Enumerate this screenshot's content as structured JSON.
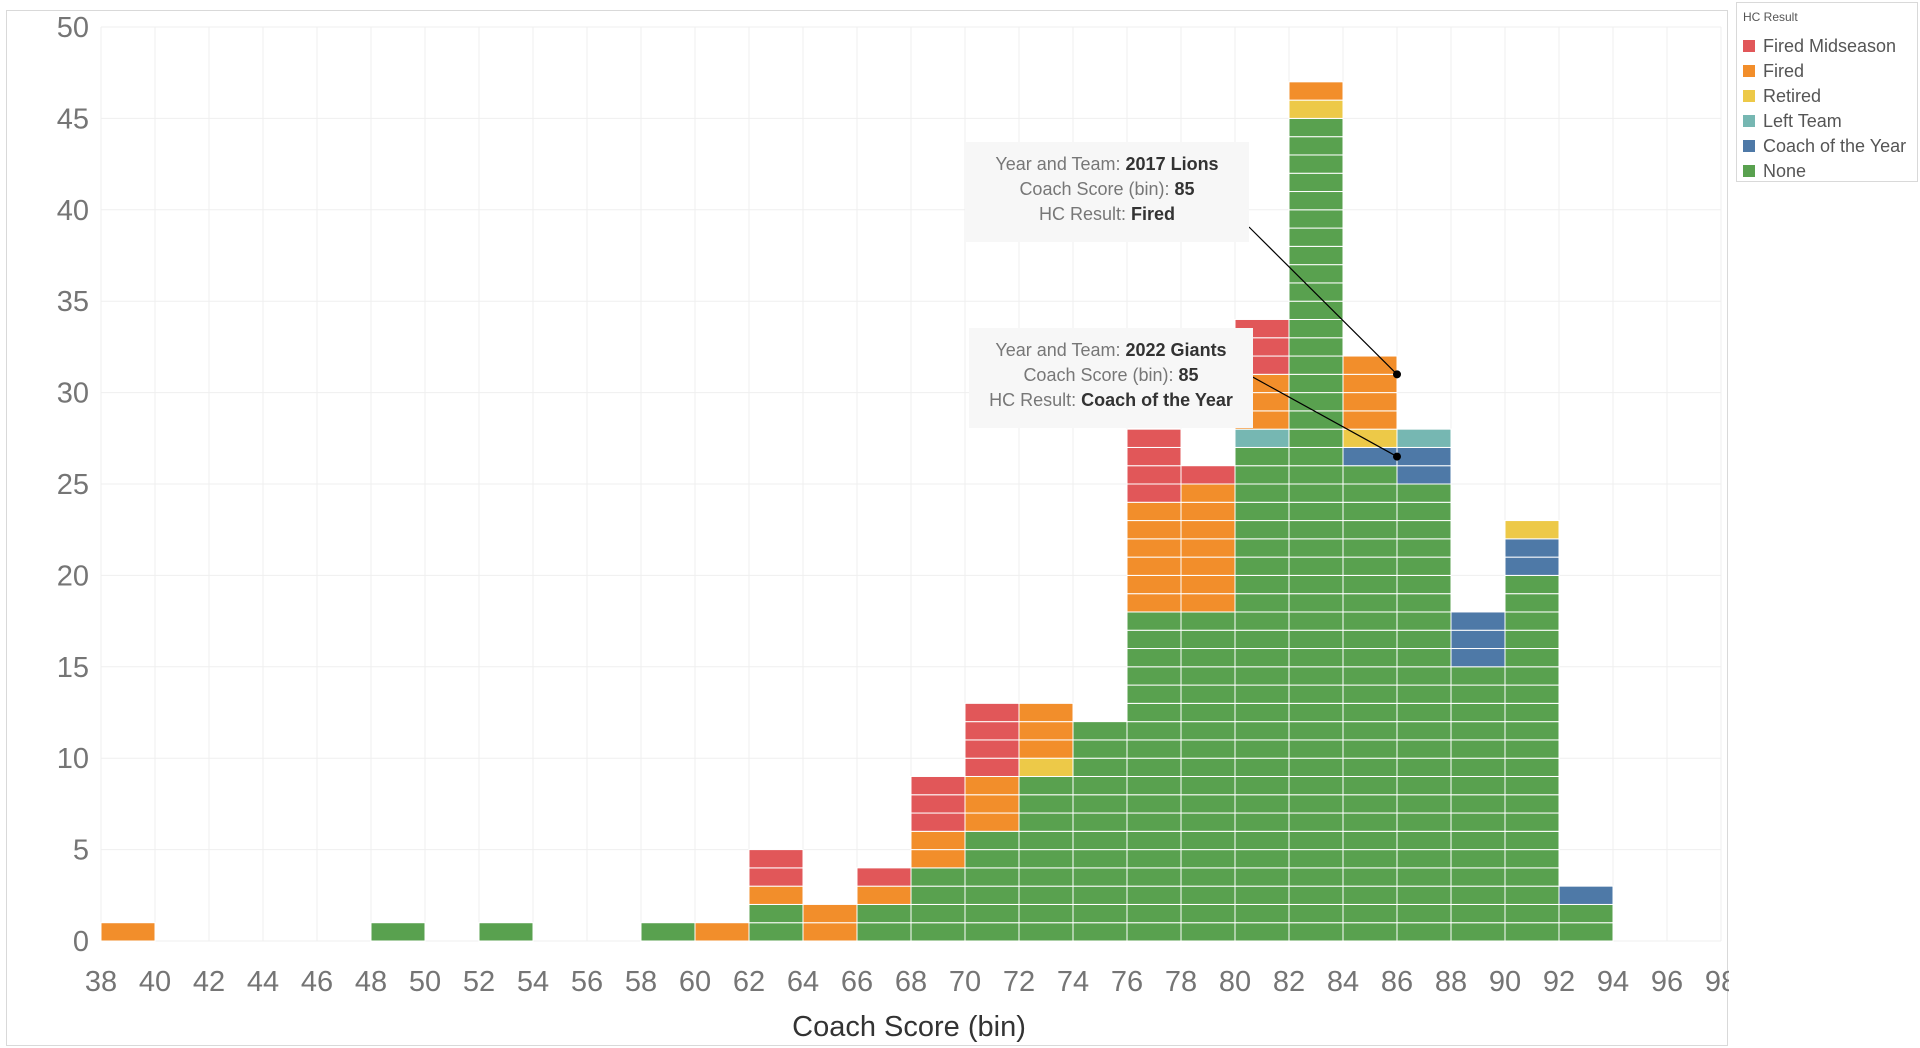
{
  "chart_data": {
    "type": "bar",
    "stacked": true,
    "xlabel": "Coach Score (bin)",
    "ylabel": "",
    "ylim": [
      0,
      50
    ],
    "xlim": [
      38,
      98
    ],
    "bin_width": 2,
    "y_ticks": [
      0,
      5,
      10,
      15,
      20,
      25,
      30,
      35,
      40,
      45,
      50
    ],
    "x_ticks": [
      38,
      40,
      42,
      44,
      46,
      48,
      50,
      52,
      54,
      56,
      58,
      60,
      62,
      64,
      66,
      68,
      70,
      72,
      74,
      76,
      78,
      80,
      82,
      84,
      86,
      88,
      90,
      92,
      94,
      96,
      98
    ],
    "grid": true,
    "legend_position": "top-right",
    "legend_title": "HC Result",
    "bins": [
      39,
      49,
      53,
      59,
      61,
      63,
      65,
      67,
      69,
      71,
      73,
      75,
      77,
      79,
      81,
      83,
      85,
      87,
      89,
      91,
      93
    ],
    "series": [
      {
        "name": "None",
        "color": "#59A14F",
        "values": [
          0,
          1,
          1,
          1,
          0,
          2,
          0,
          2,
          4,
          6,
          9,
          12,
          18,
          18,
          27,
          45,
          26,
          25,
          15,
          20,
          2
        ]
      },
      {
        "name": "Coach of the Year",
        "color": "#4E79A7",
        "values": [
          0,
          0,
          0,
          0,
          0,
          0,
          0,
          0,
          0,
          0,
          0,
          0,
          0,
          0,
          0,
          0,
          1,
          2,
          3,
          2,
          1
        ]
      },
      {
        "name": "Left Team",
        "color": "#76B7B2",
        "values": [
          0,
          0,
          0,
          0,
          0,
          0,
          0,
          0,
          0,
          0,
          0,
          0,
          0,
          0,
          1,
          0,
          0,
          1,
          0,
          0,
          0
        ]
      },
      {
        "name": "Retired",
        "color": "#EDC948",
        "values": [
          0,
          0,
          0,
          0,
          0,
          0,
          0,
          0,
          0,
          0,
          1,
          0,
          0,
          0,
          0,
          1,
          1,
          0,
          0,
          1,
          0
        ]
      },
      {
        "name": "Fired",
        "color": "#F28E2B",
        "values": [
          1,
          0,
          0,
          0,
          1,
          1,
          2,
          1,
          2,
          3,
          3,
          0,
          6,
          7,
          3,
          1,
          4,
          0,
          0,
          0,
          0
        ]
      },
      {
        "name": "Fired Midseason",
        "color": "#E15759",
        "values": [
          0,
          0,
          0,
          0,
          0,
          2,
          0,
          1,
          3,
          4,
          0,
          0,
          4,
          1,
          3,
          0,
          0,
          0,
          0,
          0,
          0
        ]
      }
    ],
    "legend_order": [
      "Fired Midseason",
      "Fired",
      "Retired",
      "Left Team",
      "Coach of the Year",
      "None"
    ],
    "annotations": [
      {
        "label_year": "Year and Team: ",
        "value_year": "2017 Lions",
        "label_score": "Coach Score (bin): ",
        "value_score": "85",
        "label_result": "HC Result: ",
        "value_result": "Fired",
        "point_x": 86,
        "point_y": 31
      },
      {
        "label_year": "Year and Team: ",
        "value_year": "2022 Giants",
        "label_score": "Coach Score (bin): ",
        "value_score": "85",
        "label_result": "HC Result: ",
        "value_result": "Coach of the Year",
        "point_x": 86,
        "point_y": 26.5
      }
    ]
  }
}
